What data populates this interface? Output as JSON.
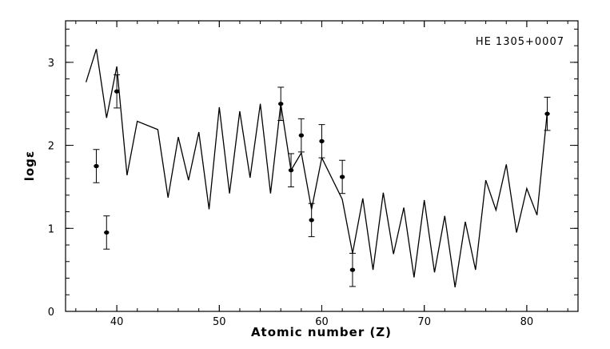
{
  "chart_data": {
    "type": "line",
    "title": "",
    "annotation": "HE 1305+0007",
    "xlabel": "Atomic number (Z)",
    "ylabel": "logε",
    "xlim": [
      35,
      85
    ],
    "ylim": [
      0,
      3.5
    ],
    "x_ticks": [
      40,
      50,
      60,
      70,
      80
    ],
    "y_ticks": [
      0,
      1,
      2,
      3
    ],
    "grid": false,
    "series": [
      {
        "style": "line",
        "points": [
          [
            37,
            2.76
          ],
          [
            38,
            3.16
          ],
          [
            39,
            2.33
          ],
          [
            40,
            2.95
          ],
          [
            41,
            1.64
          ],
          [
            42,
            2.29
          ],
          [
            44,
            2.19
          ],
          [
            45,
            1.37
          ],
          [
            46,
            2.1
          ],
          [
            47,
            1.58
          ],
          [
            48,
            2.16
          ],
          [
            49,
            1.23
          ],
          [
            50,
            2.46
          ],
          [
            51,
            1.42
          ],
          [
            52,
            2.41
          ],
          [
            53,
            1.61
          ],
          [
            54,
            2.5
          ],
          [
            55,
            1.42
          ],
          [
            56,
            2.5
          ],
          [
            57,
            1.7
          ],
          [
            58,
            1.91
          ],
          [
            59,
            1.23
          ],
          [
            60,
            1.85
          ],
          [
            62,
            1.35
          ],
          [
            63,
            0.7
          ],
          [
            64,
            1.36
          ],
          [
            65,
            0.5
          ],
          [
            66,
            1.43
          ],
          [
            67,
            0.69
          ],
          [
            68,
            1.25
          ],
          [
            69,
            0.41
          ],
          [
            70,
            1.34
          ],
          [
            71,
            0.47
          ],
          [
            72,
            1.15
          ],
          [
            73,
            0.29
          ],
          [
            74,
            1.08
          ],
          [
            75,
            0.5
          ],
          [
            76,
            1.58
          ],
          [
            77,
            1.22
          ],
          [
            78,
            1.77
          ],
          [
            79,
            0.95
          ],
          [
            80,
            1.48
          ],
          [
            81,
            1.16
          ],
          [
            82,
            2.4
          ]
        ]
      },
      {
        "style": "points-with-errorbars",
        "points": [
          {
            "x": 38,
            "y": 1.75,
            "err": 0.2
          },
          {
            "x": 39,
            "y": 0.95,
            "err": 0.2
          },
          {
            "x": 40,
            "y": 2.65,
            "err": 0.2
          },
          {
            "x": 56,
            "y": 2.5,
            "err": 0.2
          },
          {
            "x": 57,
            "y": 1.7,
            "err": 0.2
          },
          {
            "x": 58,
            "y": 2.12,
            "err": 0.2
          },
          {
            "x": 59,
            "y": 1.1,
            "err": 0.2
          },
          {
            "x": 60,
            "y": 2.05,
            "err": 0.2
          },
          {
            "x": 62,
            "y": 1.62,
            "err": 0.2
          },
          {
            "x": 63,
            "y": 0.5,
            "err": 0.2
          },
          {
            "x": 82,
            "y": 2.38,
            "err": 0.2
          }
        ]
      }
    ]
  }
}
